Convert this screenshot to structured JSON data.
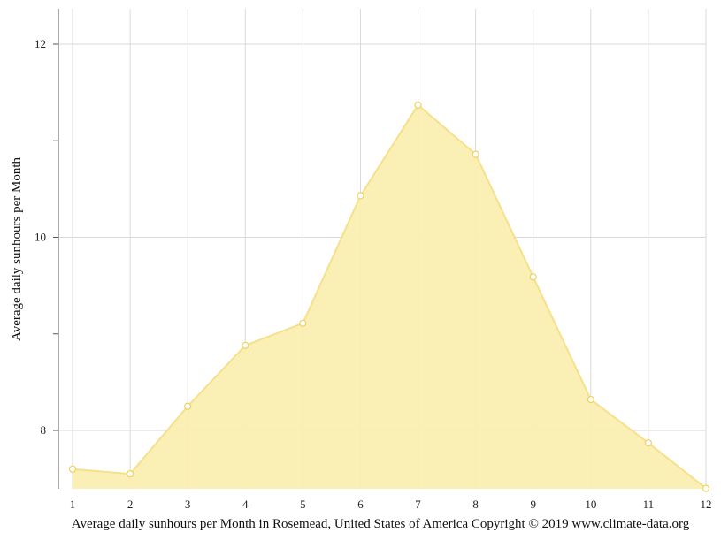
{
  "chart_data": {
    "type": "area",
    "title": "",
    "ylabel": "Average daily sunhours per Month",
    "xlabel": "",
    "caption": "Average daily sunhours per Month in Rosemead, United States of America Copyright © 2019 www.climate-data.org",
    "x": [
      1,
      2,
      3,
      4,
      5,
      6,
      7,
      8,
      9,
      10,
      11,
      12
    ],
    "x_tick_labels": [
      "1",
      "2",
      "3",
      "4",
      "5",
      "6",
      "7",
      "8",
      "9",
      "10",
      "11",
      "12"
    ],
    "series": [
      {
        "values": [
          7.6,
          7.55,
          8.25,
          8.88,
          9.11,
          10.43,
          11.37,
          10.86,
          9.59,
          8.32,
          7.87,
          7.4
        ]
      }
    ],
    "y_ticks": [
      8,
      10,
      12
    ],
    "y_tick_labels": [
      "8",
      "10",
      "12"
    ],
    "y_minor_ticks": [
      9,
      11
    ],
    "ylim": [
      7.4,
      12.35
    ],
    "xlim": [
      1,
      12
    ],
    "grid": true,
    "fill_color": "#faeeb0",
    "line_color": "#f6e08a",
    "marker_fill": "#ffffff",
    "marker_stroke": "#f0d060"
  }
}
